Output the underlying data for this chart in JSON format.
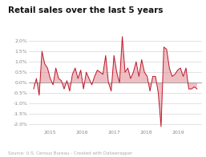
{
  "title": "Retail sales over the last 5 years",
  "source_text": "Source: U.S. Census Bureau - Created with Datawrapper",
  "ylim": [
    -2.2,
    2.3
  ],
  "yticks": [
    -2.0,
    -1.5,
    -1.0,
    -0.5,
    0.0,
    0.5,
    1.0,
    1.5,
    2.0
  ],
  "ytick_labels": [
    "-2.0%",
    "-1.5%",
    "-1.0%",
    "-0.5%",
    "0.0%",
    "0.5%",
    "1.0%",
    "1.5%",
    "2.0%"
  ],
  "xtick_years": [
    2015,
    2016,
    2017,
    2018,
    2019
  ],
  "line_color": "#c0152a",
  "fill_color": "#d9737a",
  "background_color": "#ffffff",
  "grid_color": "#cccccc",
  "zero_line_color": "#999999",
  "tick_color": "#888888",
  "title_fontsize": 7.5,
  "tick_fontsize": 4.5,
  "source_fontsize": 4.0,
  "x_start": 2014.5,
  "x_end": 2019.6,
  "xlim_left": 2014.35,
  "xlim_right": 2019.75,
  "values": [
    -0.3,
    0.2,
    -0.6,
    1.5,
    0.9,
    0.7,
    0.2,
    -0.1,
    0.7,
    0.2,
    0.1,
    -0.3,
    0.1,
    -0.4,
    0.4,
    0.7,
    0.2,
    0.6,
    -0.3,
    0.5,
    0.2,
    -0.1,
    0.3,
    0.6,
    0.5,
    0.4,
    1.3,
    0.0,
    -0.4,
    1.3,
    0.5,
    0.0,
    2.2,
    0.5,
    0.7,
    0.2,
    0.5,
    1.0,
    0.3,
    1.1,
    0.5,
    0.3,
    -0.4,
    0.3,
    0.3,
    -0.5,
    -2.1,
    1.7,
    1.6,
    0.7,
    0.3,
    0.4,
    0.6,
    0.7,
    0.3,
    0.7,
    -0.3,
    -0.3,
    -0.2,
    -0.3
  ]
}
